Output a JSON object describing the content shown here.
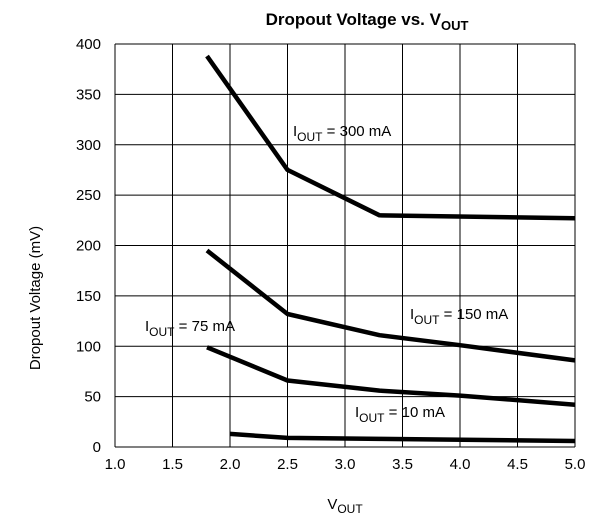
{
  "chart_data": {
    "type": "line",
    "title_main": "Dropout Voltage vs. V",
    "title_sub": "OUT",
    "xlabel_main": "V",
    "xlabel_sub": "OUT",
    "ylabel": "Dropout Voltage (mV)",
    "xlim": [
      1.0,
      5.0
    ],
    "ylim": [
      0,
      400
    ],
    "xticks": [
      "1.0",
      "1.5",
      "2.0",
      "2.5",
      "3.0",
      "3.5",
      "4.0",
      "4.5",
      "5.0"
    ],
    "yticks": [
      "0",
      "50",
      "100",
      "150",
      "200",
      "250",
      "300",
      "350",
      "400"
    ],
    "grid": true,
    "series": [
      {
        "label_main": "I",
        "label_sub": "OUT",
        "label_rest": " = 300 mA",
        "points": [
          [
            1.8,
            388
          ],
          [
            2.5,
            275
          ],
          [
            3.3,
            230
          ],
          [
            5.0,
            227
          ]
        ]
      },
      {
        "label_main": "I",
        "label_sub": "OUT",
        "label_rest": " = 150 mA",
        "points": [
          [
            1.8,
            195
          ],
          [
            2.5,
            132
          ],
          [
            3.3,
            111
          ],
          [
            4.0,
            101
          ],
          [
            5.0,
            86
          ]
        ]
      },
      {
        "label_main": "I",
        "label_sub": "OUT",
        "label_rest": " = 75 mA",
        "points": [
          [
            1.8,
            99
          ],
          [
            2.5,
            66
          ],
          [
            3.3,
            56
          ],
          [
            4.0,
            51
          ],
          [
            5.0,
            42
          ]
        ]
      },
      {
        "label_main": "I",
        "label_sub": "OUT",
        "label_rest": " = 10 mA",
        "points": [
          [
            2.0,
            13
          ],
          [
            2.5,
            9
          ],
          [
            3.3,
            8
          ],
          [
            5.0,
            6
          ]
        ]
      }
    ]
  }
}
